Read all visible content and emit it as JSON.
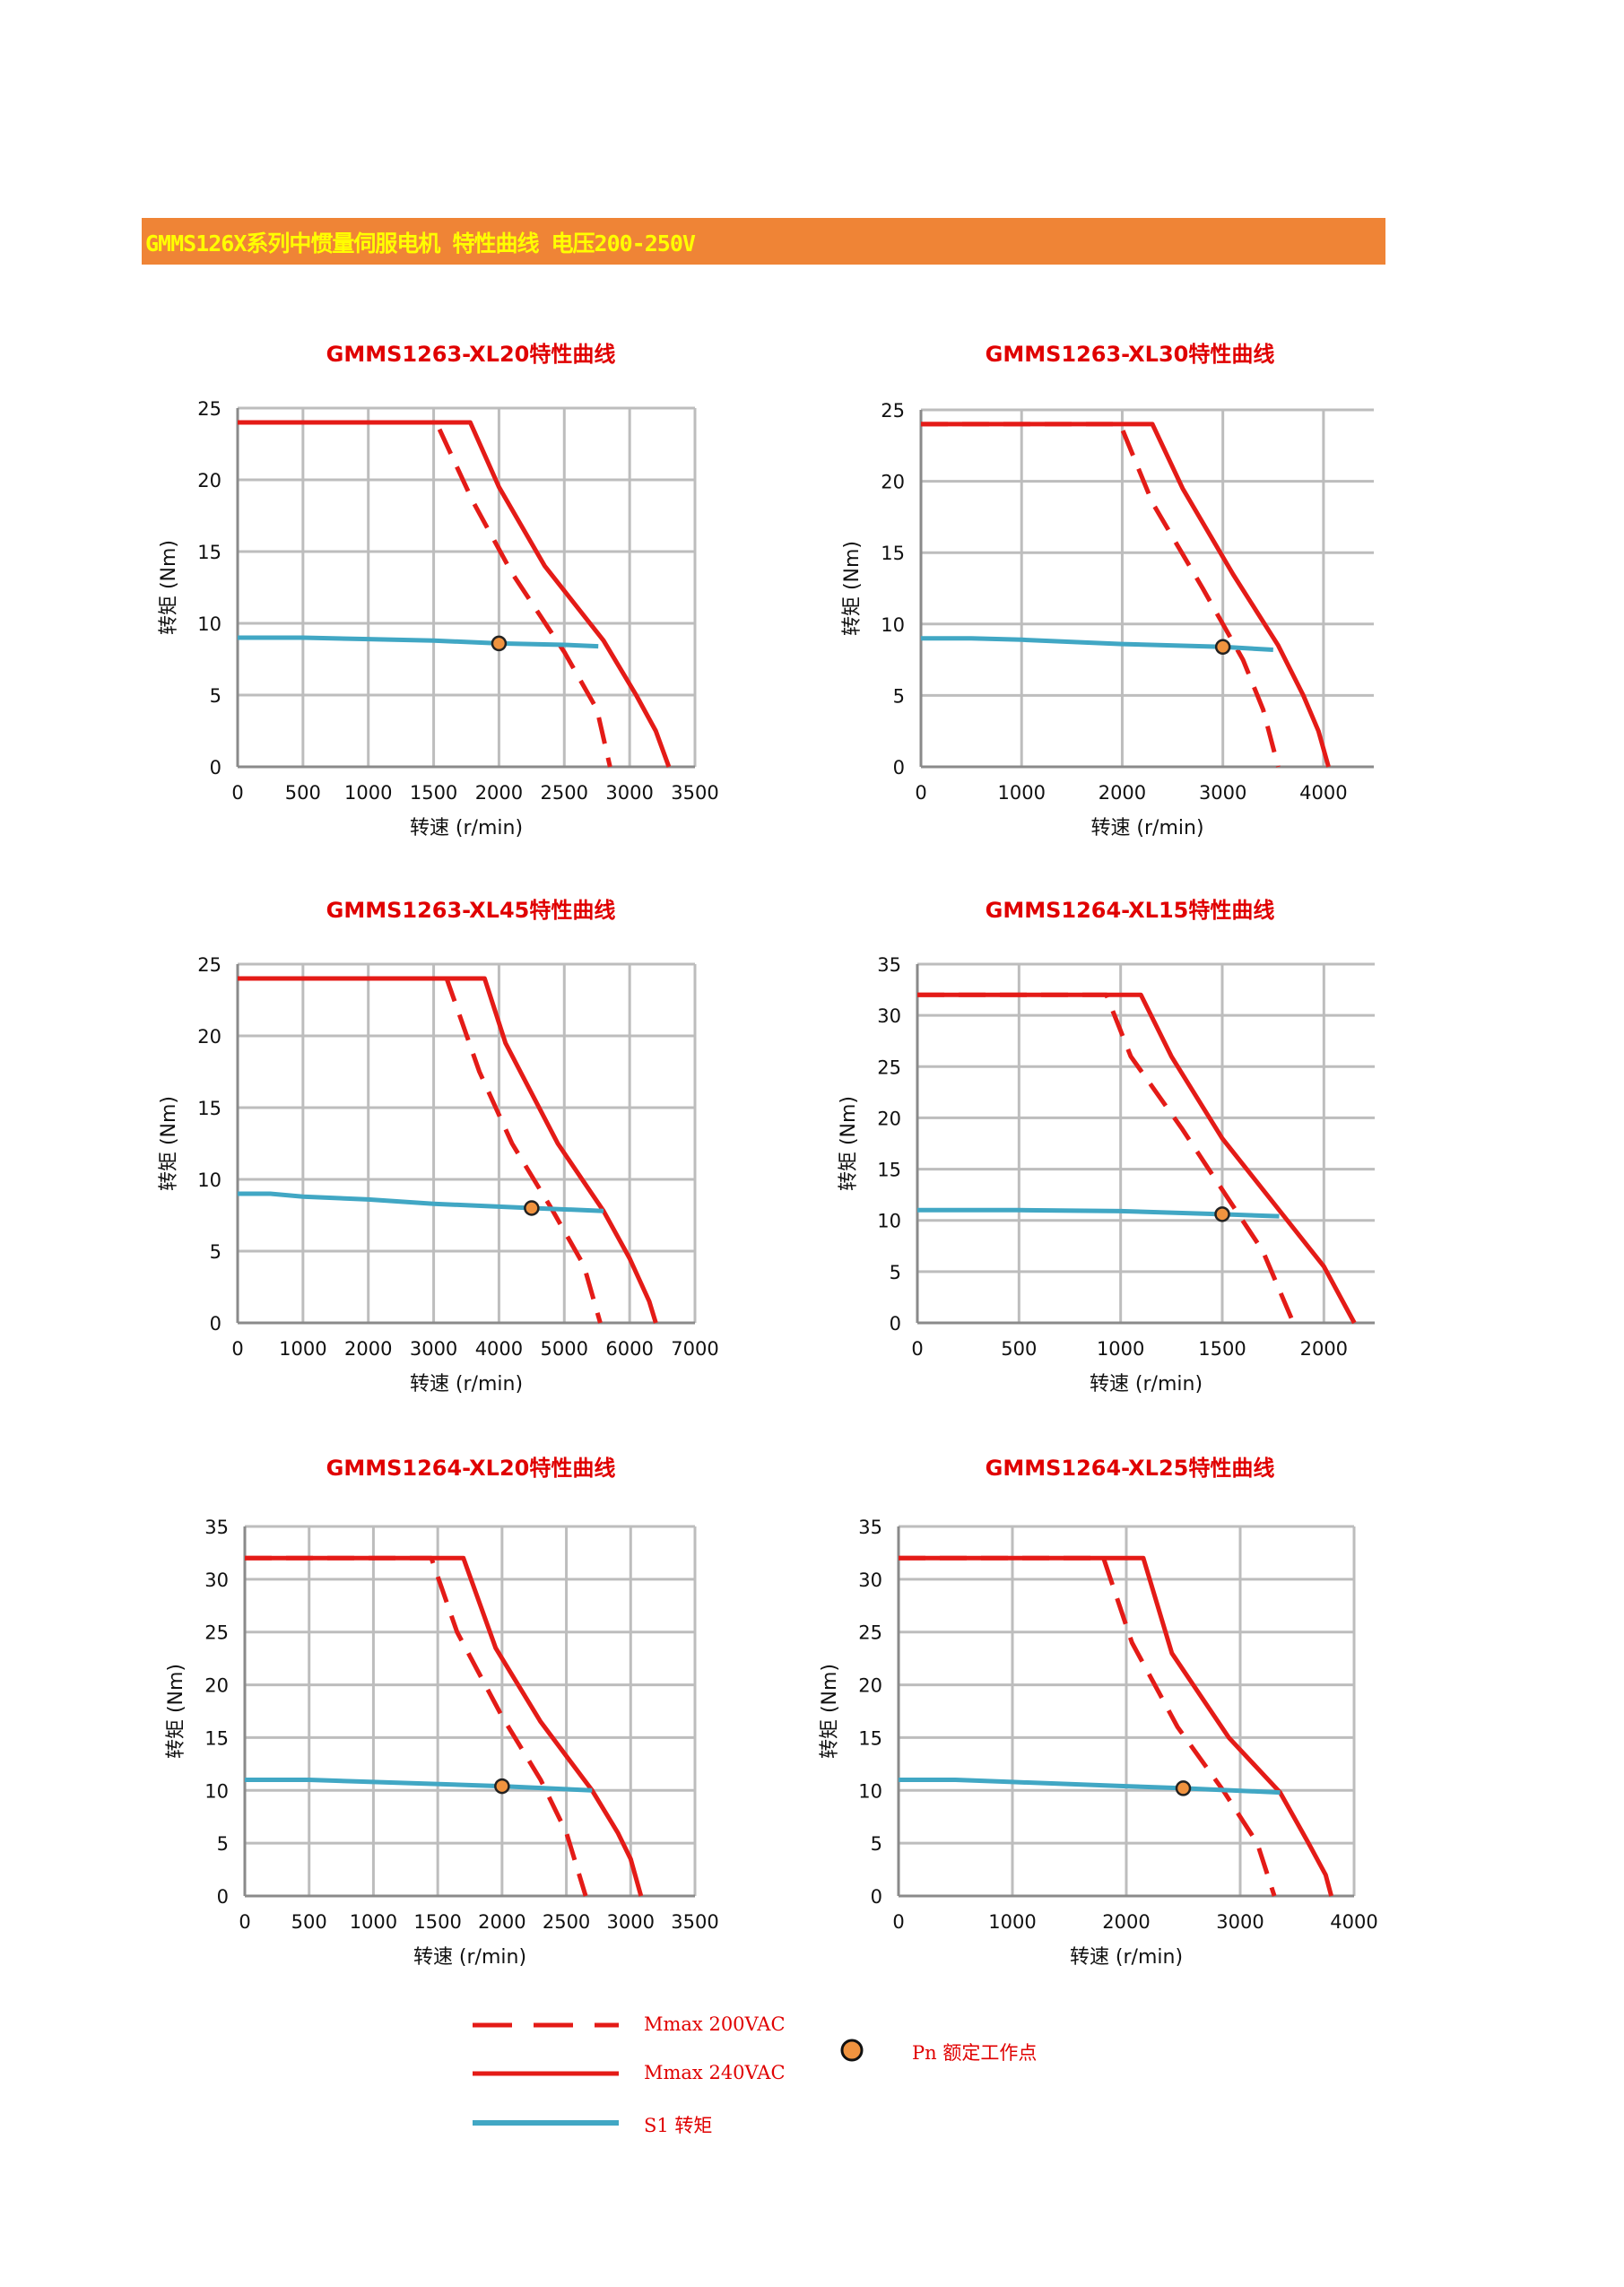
{
  "header": {
    "title": "GMMS126X系列中惯量伺服电机 特性曲线 电压200-250V",
    "color": "#ef8436",
    "text_color": "#ffff00"
  },
  "colors": {
    "title_red": "#e00000",
    "mmax_red": "#e41b17",
    "s1_blue": "#41a7c4",
    "point_fill": "#f0933f",
    "grid": "#bdbdbd"
  },
  "legend": {
    "mmax200": "Mmax 200VAC",
    "mmax240": "Mmax 240VAC",
    "s1": "S1 转矩",
    "pn": "Pn 额定工作点"
  },
  "chart_data": [
    {
      "type": "line",
      "title": "GMMS1263-XL20特性曲线",
      "xlabel": "转速 (r/min)",
      "ylabel": "转矩 (Nm)",
      "xlim": [
        0,
        3500
      ],
      "ylim": [
        0,
        25
      ],
      "xticks": [
        0,
        500,
        1000,
        1500,
        2000,
        2500,
        3000,
        3500
      ],
      "yticks": [
        0,
        5,
        10,
        15,
        20,
        25
      ],
      "grid": true,
      "series": [
        {
          "name": "Mmax 200VAC",
          "style": "dashed",
          "points": [
            [
              0,
              24
            ],
            [
              1520,
              24
            ],
            [
              1800,
              18.5
            ],
            [
              2100,
              13.5
            ],
            [
              2500,
              8
            ],
            [
              2750,
              4
            ],
            [
              2850,
              0
            ]
          ]
        },
        {
          "name": "Mmax 240VAC",
          "style": "solid",
          "points": [
            [
              0,
              24
            ],
            [
              1780,
              24
            ],
            [
              2000,
              19.5
            ],
            [
              2350,
              14
            ],
            [
              2800,
              8.8
            ],
            [
              3050,
              5
            ],
            [
              3200,
              2.5
            ],
            [
              3300,
              0
            ]
          ]
        },
        {
          "name": "S1 转矩",
          "style": "solid",
          "points": [
            [
              0,
              9
            ],
            [
              500,
              9
            ],
            [
              1000,
              8.9
            ],
            [
              1500,
              8.8
            ],
            [
              2000,
              8.6
            ],
            [
              2500,
              8.5
            ],
            [
              2760,
              8.4
            ]
          ]
        }
      ],
      "rated_point": [
        2000,
        8.6
      ]
    },
    {
      "type": "line",
      "title": "GMMS1263-XL30特性曲线",
      "xlabel": "转速 (r/min)",
      "ylabel": "转矩 (Nm)",
      "xlim": [
        0,
        4500
      ],
      "ylim": [
        0,
        25
      ],
      "xticks": [
        0,
        1000,
        2000,
        3000,
        4000
      ],
      "yticks": [
        0,
        5,
        10,
        15,
        20,
        25
      ],
      "grid": true,
      "series": [
        {
          "name": "Mmax 200VAC",
          "style": "dashed",
          "points": [
            [
              0,
              24
            ],
            [
              1980,
              24
            ],
            [
              2300,
              18.5
            ],
            [
              2800,
              12.5
            ],
            [
              3200,
              7.5
            ],
            [
              3400,
              4
            ],
            [
              3550,
              0
            ]
          ]
        },
        {
          "name": "Mmax 240VAC",
          "style": "solid",
          "points": [
            [
              0,
              24
            ],
            [
              2300,
              24
            ],
            [
              2600,
              19.5
            ],
            [
              3100,
              13.5
            ],
            [
              3550,
              8.5
            ],
            [
              3800,
              5
            ],
            [
              3950,
              2.5
            ],
            [
              4050,
              0
            ]
          ]
        },
        {
          "name": "S1 转矩",
          "style": "solid",
          "points": [
            [
              0,
              9
            ],
            [
              500,
              9
            ],
            [
              1000,
              8.9
            ],
            [
              2000,
              8.6
            ],
            [
              3000,
              8.4
            ],
            [
              3500,
              8.2
            ]
          ]
        }
      ],
      "rated_point": [
        3000,
        8.4
      ]
    },
    {
      "type": "line",
      "title": "GMMS1263-XL45特性曲线",
      "xlabel": "转速 (r/min)",
      "ylabel": "转矩 (Nm)",
      "xlim": [
        0,
        7000
      ],
      "ylim": [
        0,
        25
      ],
      "xticks": [
        0,
        1000,
        2000,
        3000,
        4000,
        5000,
        6000,
        7000
      ],
      "yticks": [
        0,
        5,
        10,
        15,
        20,
        25
      ],
      "grid": true,
      "series": [
        {
          "name": "Mmax 200VAC",
          "style": "dashed",
          "points": [
            [
              0,
              24
            ],
            [
              3200,
              24
            ],
            [
              3700,
              17.5
            ],
            [
              4200,
              12.5
            ],
            [
              4800,
              8
            ],
            [
              5300,
              4
            ],
            [
              5550,
              0
            ]
          ]
        },
        {
          "name": "Mmax 240VAC",
          "style": "solid",
          "points": [
            [
              0,
              24
            ],
            [
              3780,
              24
            ],
            [
              4100,
              19.5
            ],
            [
              4900,
              12.5
            ],
            [
              5600,
              7.8
            ],
            [
              6000,
              4.5
            ],
            [
              6300,
              1.5
            ],
            [
              6400,
              0
            ]
          ]
        },
        {
          "name": "S1 转矩",
          "style": "solid",
          "points": [
            [
              0,
              9
            ],
            [
              500,
              9
            ],
            [
              1000,
              8.8
            ],
            [
              2000,
              8.6
            ],
            [
              3000,
              8.3
            ],
            [
              4500,
              8
            ],
            [
              5600,
              7.8
            ]
          ]
        }
      ],
      "rated_point": [
        4500,
        8
      ]
    },
    {
      "type": "line",
      "title": "GMMS1264-XL15特性曲线",
      "xlabel": "转速 (r/min)",
      "ylabel": "转矩 (Nm)",
      "xlim": [
        0,
        2250
      ],
      "ylim": [
        0,
        35
      ],
      "xticks": [
        0,
        500,
        1000,
        1500,
        2000
      ],
      "yticks": [
        0,
        5,
        10,
        15,
        20,
        25,
        30,
        35
      ],
      "grid": true,
      "series": [
        {
          "name": "Mmax 200VAC",
          "style": "dashed",
          "points": [
            [
              0,
              32
            ],
            [
              930,
              32
            ],
            [
              1050,
              26
            ],
            [
              1300,
              19
            ],
            [
              1550,
              11.5
            ],
            [
              1700,
              7
            ],
            [
              1850,
              0
            ]
          ]
        },
        {
          "name": "Mmax 240VAC",
          "style": "solid",
          "points": [
            [
              0,
              32
            ],
            [
              1100,
              32
            ],
            [
              1250,
              26
            ],
            [
              1500,
              18
            ],
            [
              1800,
              10.5
            ],
            [
              2000,
              5.5
            ],
            [
              2150,
              0
            ]
          ]
        },
        {
          "name": "S1 转矩",
          "style": "solid",
          "points": [
            [
              0,
              11
            ],
            [
              500,
              11
            ],
            [
              1000,
              10.9
            ],
            [
              1500,
              10.6
            ],
            [
              1780,
              10.4
            ]
          ]
        }
      ],
      "rated_point": [
        1500,
        10.6
      ]
    },
    {
      "type": "line",
      "title": "GMMS1264-XL20特性曲线",
      "xlabel": "转速 (r/min)",
      "ylabel": "转矩 (Nm)",
      "xlim": [
        0,
        3500
      ],
      "ylim": [
        0,
        35
      ],
      "xticks": [
        0,
        500,
        1000,
        1500,
        2000,
        2500,
        3000,
        3500
      ],
      "yticks": [
        0,
        5,
        10,
        15,
        20,
        25,
        30,
        35
      ],
      "grid": true,
      "series": [
        {
          "name": "Mmax 200VAC",
          "style": "dashed",
          "points": [
            [
              0,
              32
            ],
            [
              1450,
              32
            ],
            [
              1650,
              25
            ],
            [
              2000,
              17
            ],
            [
              2300,
              11
            ],
            [
              2500,
              6
            ],
            [
              2650,
              0
            ]
          ]
        },
        {
          "name": "Mmax 240VAC",
          "style": "solid",
          "points": [
            [
              0,
              32
            ],
            [
              1700,
              32
            ],
            [
              1950,
              23.5
            ],
            [
              2300,
              16.5
            ],
            [
              2700,
              10
            ],
            [
              2900,
              6
            ],
            [
              3000,
              3.5
            ],
            [
              3080,
              0
            ]
          ]
        },
        {
          "name": "S1 转矩",
          "style": "solid",
          "points": [
            [
              0,
              11
            ],
            [
              500,
              11
            ],
            [
              1000,
              10.8
            ],
            [
              2000,
              10.4
            ],
            [
              2700,
              10
            ]
          ]
        }
      ],
      "rated_point": [
        2000,
        10.4
      ]
    },
    {
      "type": "line",
      "title": "GMMS1264-XL25特性曲线",
      "xlabel": "转速 (r/min)",
      "ylabel": "转矩 (Nm)",
      "xlim": [
        0,
        4000
      ],
      "ylim": [
        0,
        35
      ],
      "xticks": [
        0,
        1000,
        2000,
        3000,
        4000
      ],
      "yticks": [
        0,
        5,
        10,
        15,
        20,
        25,
        30,
        35
      ],
      "grid": true,
      "series": [
        {
          "name": "Mmax 200VAC",
          "style": "dashed",
          "points": [
            [
              0,
              32
            ],
            [
              1800,
              32
            ],
            [
              2050,
              24
            ],
            [
              2450,
              16
            ],
            [
              2850,
              10
            ],
            [
              3150,
              5
            ],
            [
              3300,
              0
            ]
          ]
        },
        {
          "name": "Mmax 240VAC",
          "style": "solid",
          "points": [
            [
              0,
              32
            ],
            [
              2150,
              32
            ],
            [
              2400,
              23
            ],
            [
              2900,
              15
            ],
            [
              3350,
              9.8
            ],
            [
              3600,
              5
            ],
            [
              3750,
              2
            ],
            [
              3800,
              0
            ]
          ]
        },
        {
          "name": "S1 转矩",
          "style": "solid",
          "points": [
            [
              0,
              11
            ],
            [
              500,
              11
            ],
            [
              1000,
              10.8
            ],
            [
              2000,
              10.4
            ],
            [
              2500,
              10.2
            ],
            [
              3350,
              9.8
            ]
          ]
        }
      ],
      "rated_point": [
        2500,
        10.2
      ]
    }
  ]
}
